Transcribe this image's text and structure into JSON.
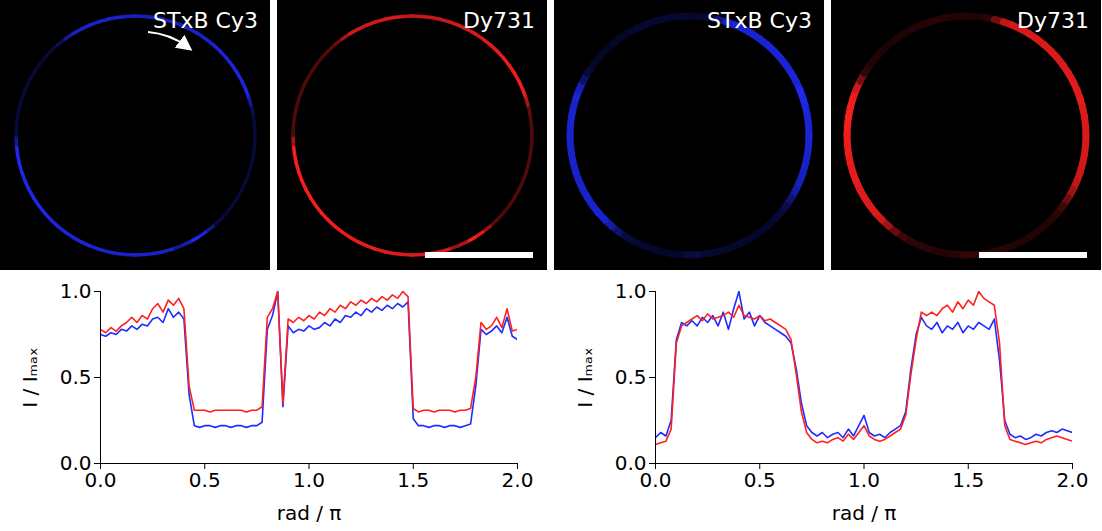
{
  "chart_data": [
    {
      "type": "line",
      "xlabel": "rad / π",
      "ylabel": "I / Iₘₐₓ",
      "xlim": [
        0,
        2
      ],
      "xticks": [
        {
          "value": 0,
          "label": "0.0"
        },
        {
          "value": 0.5,
          "label": "0.5"
        },
        {
          "value": 1,
          "label": "1.0"
        },
        {
          "value": 1.5,
          "label": "1.5"
        },
        {
          "value": 2,
          "label": "2.0"
        }
      ],
      "ylim": [
        0,
        1
      ],
      "yticks": [
        {
          "value": 0,
          "label": "0.0"
        },
        {
          "value": 0.5,
          "label": "0.5"
        },
        {
          "value": 1,
          "label": "1.0"
        }
      ],
      "x": [
        0,
        0.025,
        0.05,
        0.075,
        0.1,
        0.125,
        0.15,
        0.175,
        0.2,
        0.225,
        0.25,
        0.275,
        0.3,
        0.325,
        0.35,
        0.375,
        0.4,
        0.425,
        0.45,
        0.475,
        0.5,
        0.525,
        0.55,
        0.575,
        0.6,
        0.625,
        0.65,
        0.675,
        0.7,
        0.725,
        0.75,
        0.775,
        0.8,
        0.825,
        0.85,
        0.875,
        0.9,
        0.925,
        0.95,
        0.975,
        1,
        1.025,
        1.05,
        1.075,
        1.1,
        1.125,
        1.15,
        1.175,
        1.2,
        1.225,
        1.25,
        1.275,
        1.3,
        1.325,
        1.35,
        1.375,
        1.4,
        1.425,
        1.45,
        1.475,
        1.5,
        1.525,
        1.55,
        1.575,
        1.6,
        1.625,
        1.65,
        1.675,
        1.7,
        1.725,
        1.75,
        1.775,
        1.8,
        1.825,
        1.85,
        1.875,
        1.9,
        1.925,
        1.95,
        1.975,
        2
      ],
      "series": [
        {
          "name": "STxB Cy3",
          "color": "#1f2bff",
          "values": [
            0.75,
            0.74,
            0.76,
            0.75,
            0.78,
            0.77,
            0.8,
            0.78,
            0.81,
            0.8,
            0.84,
            0.85,
            0.82,
            0.9,
            0.85,
            0.88,
            0.84,
            0.4,
            0.22,
            0.21,
            0.22,
            0.22,
            0.21,
            0.22,
            0.22,
            0.21,
            0.22,
            0.22,
            0.21,
            0.22,
            0.22,
            0.24,
            0.78,
            0.86,
            1.0,
            0.33,
            0.8,
            0.76,
            0.78,
            0.77,
            0.8,
            0.78,
            0.79,
            0.82,
            0.8,
            0.84,
            0.82,
            0.86,
            0.85,
            0.88,
            0.86,
            0.9,
            0.88,
            0.91,
            0.89,
            0.92,
            0.9,
            0.93,
            0.91,
            0.94,
            0.26,
            0.22,
            0.22,
            0.21,
            0.22,
            0.22,
            0.21,
            0.22,
            0.22,
            0.21,
            0.22,
            0.23,
            0.45,
            0.78,
            0.75,
            0.77,
            0.8,
            0.76,
            0.85,
            0.74,
            0.72
          ]
        },
        {
          "name": "Dy731",
          "color": "#ff1f1f",
          "values": [
            0.78,
            0.76,
            0.79,
            0.77,
            0.8,
            0.82,
            0.85,
            0.82,
            0.86,
            0.84,
            0.9,
            0.93,
            0.88,
            0.95,
            0.92,
            0.96,
            0.9,
            0.45,
            0.31,
            0.31,
            0.31,
            0.3,
            0.31,
            0.31,
            0.31,
            0.31,
            0.31,
            0.31,
            0.3,
            0.31,
            0.31,
            0.33,
            0.85,
            0.9,
            1.0,
            0.35,
            0.84,
            0.82,
            0.85,
            0.83,
            0.86,
            0.84,
            0.88,
            0.86,
            0.9,
            0.88,
            0.92,
            0.9,
            0.94,
            0.92,
            0.95,
            0.93,
            0.96,
            0.94,
            0.97,
            0.95,
            0.98,
            0.96,
            1.0,
            0.97,
            0.32,
            0.3,
            0.31,
            0.31,
            0.3,
            0.31,
            0.31,
            0.31,
            0.3,
            0.31,
            0.31,
            0.32,
            0.5,
            0.82,
            0.78,
            0.8,
            0.85,
            0.79,
            0.9,
            0.77,
            0.78
          ]
        }
      ]
    },
    {
      "type": "line",
      "xlabel": "rad / π",
      "ylabel": "I / Iₘₐₓ",
      "xlim": [
        0,
        2
      ],
      "xticks": [
        {
          "value": 0,
          "label": "0.0"
        },
        {
          "value": 0.5,
          "label": "0.5"
        },
        {
          "value": 1,
          "label": "1.0"
        },
        {
          "value": 1.5,
          "label": "1.5"
        },
        {
          "value": 2,
          "label": "2.0"
        }
      ],
      "ylim": [
        0,
        1
      ],
      "yticks": [
        {
          "value": 0,
          "label": "0.0"
        },
        {
          "value": 0.5,
          "label": "0.5"
        },
        {
          "value": 1,
          "label": "1.0"
        }
      ],
      "x": [
        0,
        0.025,
        0.05,
        0.075,
        0.1,
        0.125,
        0.15,
        0.175,
        0.2,
        0.225,
        0.25,
        0.275,
        0.3,
        0.325,
        0.35,
        0.375,
        0.4,
        0.425,
        0.45,
        0.475,
        0.5,
        0.525,
        0.55,
        0.575,
        0.6,
        0.625,
        0.65,
        0.675,
        0.7,
        0.725,
        0.75,
        0.775,
        0.8,
        0.825,
        0.85,
        0.875,
        0.9,
        0.925,
        0.95,
        0.975,
        1,
        1.025,
        1.05,
        1.075,
        1.1,
        1.125,
        1.15,
        1.175,
        1.2,
        1.225,
        1.25,
        1.275,
        1.3,
        1.325,
        1.35,
        1.375,
        1.4,
        1.425,
        1.45,
        1.475,
        1.5,
        1.525,
        1.55,
        1.575,
        1.6,
        1.625,
        1.65,
        1.675,
        1.7,
        1.725,
        1.75,
        1.775,
        1.8,
        1.825,
        1.85,
        1.875,
        1.9,
        1.925,
        1.95,
        1.975,
        2
      ],
      "series": [
        {
          "name": "STxB Cy3",
          "color": "#1f2bff",
          "values": [
            0.15,
            0.18,
            0.16,
            0.25,
            0.72,
            0.82,
            0.8,
            0.83,
            0.8,
            0.85,
            0.82,
            0.86,
            0.8,
            0.88,
            0.78,
            0.9,
            1.0,
            0.84,
            0.88,
            0.8,
            0.86,
            0.82,
            0.8,
            0.78,
            0.76,
            0.74,
            0.7,
            0.55,
            0.35,
            0.22,
            0.18,
            0.16,
            0.18,
            0.15,
            0.17,
            0.18,
            0.15,
            0.2,
            0.16,
            0.22,
            0.28,
            0.18,
            0.16,
            0.17,
            0.15,
            0.18,
            0.2,
            0.22,
            0.3,
            0.55,
            0.75,
            0.85,
            0.8,
            0.78,
            0.82,
            0.76,
            0.8,
            0.78,
            0.82,
            0.76,
            0.8,
            0.78,
            0.82,
            0.8,
            0.78,
            0.84,
            0.6,
            0.25,
            0.17,
            0.15,
            0.16,
            0.14,
            0.15,
            0.17,
            0.16,
            0.18,
            0.19,
            0.18,
            0.2,
            0.19,
            0.18
          ]
        },
        {
          "name": "Dy731",
          "color": "#ff1f1f",
          "values": [
            0.11,
            0.12,
            0.13,
            0.2,
            0.7,
            0.8,
            0.82,
            0.84,
            0.86,
            0.83,
            0.87,
            0.84,
            0.85,
            0.86,
            0.88,
            0.85,
            0.92,
            0.86,
            0.85,
            0.84,
            0.86,
            0.83,
            0.84,
            0.82,
            0.8,
            0.78,
            0.72,
            0.52,
            0.3,
            0.18,
            0.14,
            0.12,
            0.13,
            0.12,
            0.14,
            0.15,
            0.13,
            0.17,
            0.14,
            0.18,
            0.22,
            0.16,
            0.14,
            0.13,
            0.14,
            0.16,
            0.18,
            0.2,
            0.28,
            0.52,
            0.72,
            0.88,
            0.86,
            0.88,
            0.86,
            0.9,
            0.92,
            0.88,
            0.94,
            0.9,
            0.95,
            0.92,
            1.0,
            0.96,
            0.94,
            0.92,
            0.7,
            0.22,
            0.14,
            0.13,
            0.12,
            0.11,
            0.12,
            0.13,
            0.12,
            0.14,
            0.15,
            0.16,
            0.15,
            0.14,
            0.13
          ]
        }
      ]
    }
  ]
}
